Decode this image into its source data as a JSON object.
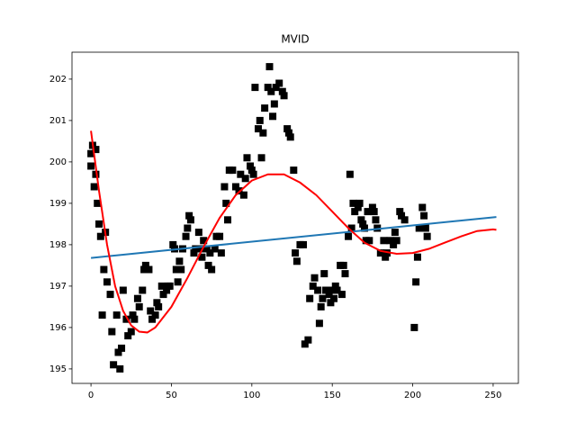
{
  "chart_data": {
    "type": "scatter",
    "title": "MVID",
    "xlim": [
      -11.8,
      265.7
    ],
    "ylim": [
      194.65,
      202.65
    ],
    "xticks": [
      0,
      50,
      100,
      150,
      200,
      250
    ],
    "yticks": [
      195,
      196,
      197,
      198,
      199,
      200,
      201,
      202
    ],
    "points": {
      "color": "#000000",
      "marker": "square",
      "x": [
        0,
        0,
        1,
        2,
        3,
        3,
        4,
        5,
        6,
        7,
        8,
        9,
        10,
        12,
        13,
        14,
        16,
        17,
        18,
        19,
        20,
        22,
        23,
        25,
        26,
        27,
        29,
        30,
        32,
        33,
        34,
        36,
        37,
        38,
        40,
        41,
        42,
        44,
        45,
        47,
        48,
        49,
        51,
        52,
        53,
        54,
        55,
        56,
        57,
        59,
        60,
        61,
        62,
        64,
        65,
        67,
        68,
        69,
        70,
        72,
        73,
        74,
        75,
        77,
        78,
        80,
        81,
        83,
        84,
        85,
        86,
        88,
        90,
        92,
        93,
        95,
        96,
        97,
        99,
        100,
        101,
        102,
        104,
        105,
        106,
        107,
        108,
        110,
        111,
        112,
        113,
        114,
        115,
        117,
        119,
        120,
        122,
        123,
        124,
        126,
        127,
        128,
        130,
        132,
        133,
        135,
        136,
        138,
        139,
        141,
        142,
        143,
        144,
        145,
        146,
        148,
        149,
        150,
        151,
        152,
        153,
        155,
        156,
        157,
        158,
        160,
        161,
        162,
        163,
        164,
        166,
        167,
        168,
        169,
        170,
        171,
        172,
        173,
        175,
        176,
        177,
        178,
        180,
        182,
        183,
        184,
        186,
        188,
        189,
        190,
        192,
        193,
        195,
        201,
        202,
        203,
        204,
        206,
        207,
        208,
        209
      ],
      "values": [
        200.2,
        199.9,
        200.4,
        199.4,
        200.3,
        199.7,
        199.0,
        198.5,
        198.2,
        196.3,
        197.4,
        198.3,
        197.1,
        196.8,
        195.9,
        195.1,
        196.3,
        195.4,
        195.0,
        195.5,
        196.9,
        196.2,
        195.8,
        195.9,
        196.3,
        196.2,
        196.7,
        196.5,
        196.9,
        197.4,
        197.5,
        197.4,
        196.4,
        196.2,
        196.3,
        196.6,
        196.5,
        197.0,
        196.8,
        196.9,
        197.0,
        197.0,
        198.0,
        197.9,
        197.4,
        197.1,
        197.6,
        197.4,
        197.9,
        198.2,
        198.4,
        198.7,
        198.6,
        197.8,
        197.9,
        198.3,
        197.9,
        197.7,
        198.1,
        197.9,
        197.5,
        197.8,
        197.4,
        197.9,
        198.2,
        198.2,
        197.8,
        199.4,
        199.0,
        198.6,
        199.8,
        199.8,
        199.4,
        199.3,
        199.7,
        199.2,
        199.6,
        200.1,
        199.9,
        199.8,
        199.7,
        201.8,
        200.8,
        201.0,
        200.1,
        200.7,
        201.3,
        201.8,
        202.3,
        201.7,
        201.1,
        201.4,
        201.8,
        201.9,
        201.7,
        201.6,
        200.8,
        200.7,
        200.6,
        199.8,
        197.8,
        197.6,
        198.0,
        198.0,
        195.6,
        195.7,
        196.7,
        197.0,
        197.2,
        196.9,
        196.1,
        196.5,
        196.7,
        197.3,
        196.9,
        196.8,
        196.6,
        196.9,
        196.7,
        197.0,
        196.9,
        197.5,
        196.8,
        197.5,
        197.3,
        198.2,
        199.7,
        198.4,
        199.0,
        198.8,
        198.9,
        199.0,
        198.6,
        198.5,
        198.4,
        198.1,
        198.8,
        198.1,
        198.9,
        198.8,
        198.6,
        198.4,
        197.8,
        198.1,
        197.7,
        197.8,
        198.1,
        198.0,
        198.3,
        198.1,
        198.8,
        198.7,
        198.6,
        196.0,
        197.1,
        197.7,
        198.4,
        198.9,
        198.7,
        198.4,
        198.2
      ]
    },
    "fit_line": {
      "color": "#1f77b4",
      "x": [
        0,
        252
      ],
      "values": [
        197.68,
        198.67
      ]
    },
    "fit_curve": {
      "color": "#ff0000",
      "x": [
        0,
        5,
        10,
        15,
        20,
        25,
        30,
        35,
        40,
        50,
        60,
        70,
        80,
        90,
        100,
        110,
        120,
        130,
        140,
        150,
        160,
        170,
        180,
        190,
        200,
        210,
        220,
        230,
        240,
        250,
        252
      ],
      "values": [
        200.75,
        199.3,
        198.0,
        197.0,
        196.4,
        196.05,
        195.9,
        195.88,
        196.0,
        196.5,
        197.2,
        197.95,
        198.65,
        199.2,
        199.55,
        199.7,
        199.7,
        199.5,
        199.2,
        198.8,
        198.4,
        198.05,
        197.85,
        197.78,
        197.8,
        197.9,
        198.05,
        198.2,
        198.33,
        198.37,
        198.36
      ]
    }
  }
}
